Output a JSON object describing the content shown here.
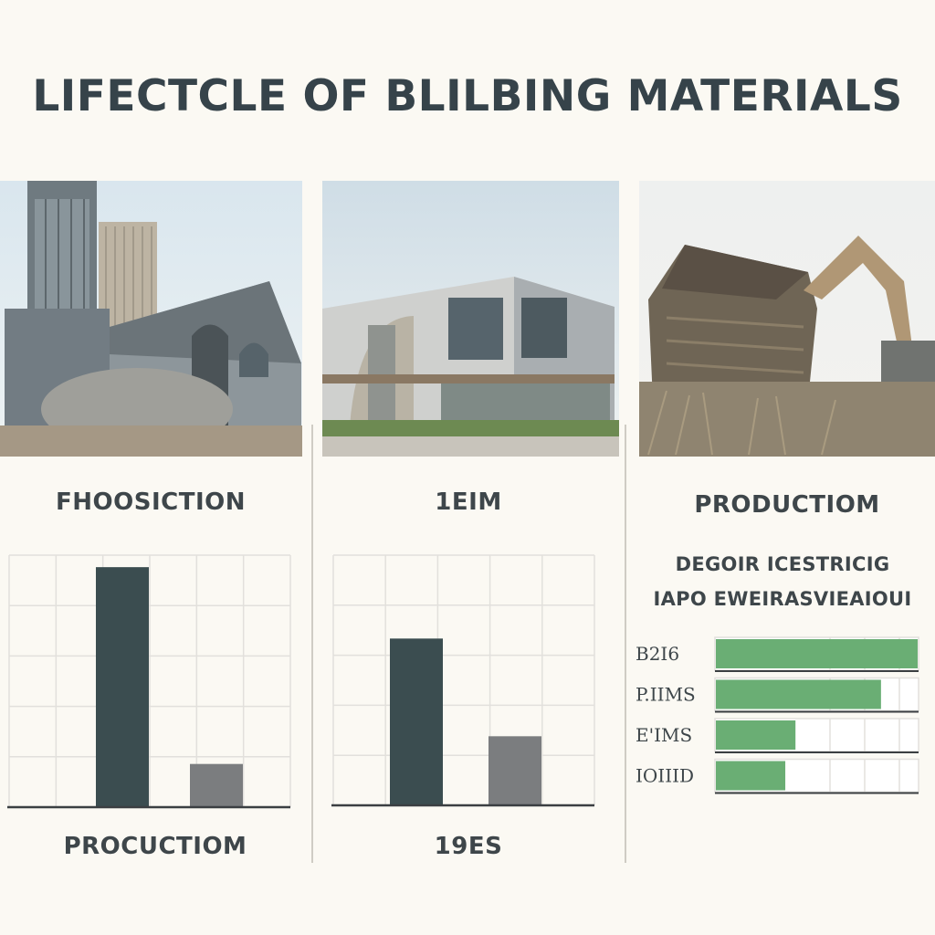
{
  "title": "LIFECTCLE OF BLILBING MATERIALS",
  "columns": [
    {
      "photo_icon": "factory-photo",
      "label": "FHOOSICTION",
      "bottom_label": "PROCUCTIOM"
    },
    {
      "photo_icon": "building-photo",
      "label": "1EIM",
      "bottom_label": "19ES"
    },
    {
      "photo_icon": "demolition-photo",
      "label": "PRODUCTIOM",
      "sub_label_1": "DEGOIR ICESTRICIG",
      "sub_label_2": "IAPO EWEIRASVIEAIOUI"
    }
  ],
  "colors": {
    "dark_bar": "#3b4d50",
    "gray_bar": "#7b7d7f",
    "green_bar": "#6aae74",
    "grid": "#e2e0dc",
    "axis": "#3b3f42"
  },
  "chart_data": [
    {
      "type": "bar",
      "categories": [
        "",
        ""
      ],
      "values": [
        100,
        18
      ],
      "ylim": [
        0,
        105
      ],
      "grid": true
    },
    {
      "type": "bar",
      "categories": [
        "",
        ""
      ],
      "values": [
        70,
        29
      ],
      "ylim": [
        0,
        105
      ],
      "grid": true
    },
    {
      "type": "bar",
      "orientation": "horizontal",
      "categories": [
        "B2I6",
        "P.IIMS",
        "E'IMS",
        "IOIIID"
      ],
      "values": [
        100,
        82,
        40,
        35
      ],
      "xlim": [
        0,
        100
      ],
      "grid": true
    }
  ]
}
